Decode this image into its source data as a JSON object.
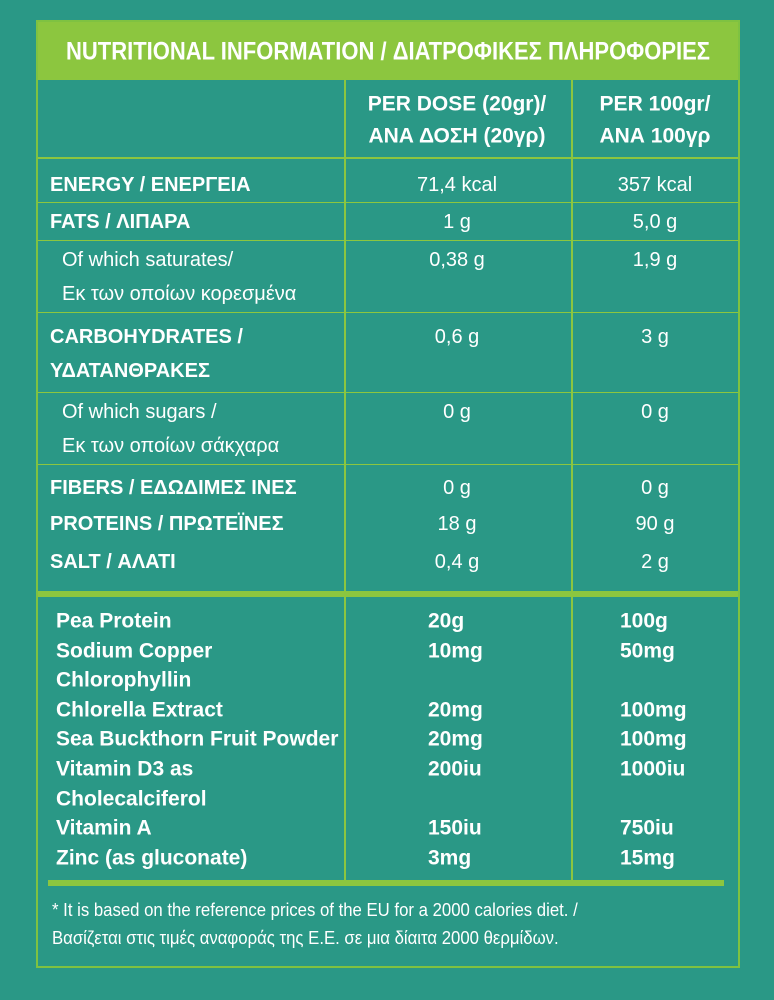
{
  "header": {
    "title": "NUTRITIONAL INFORMATION / ΔΙΑΤΡΟΦΙΚΕΣ ΠΛΗΡΟΦΟΡΙΕΣ"
  },
  "table": {
    "columns": [
      [
        "PER DOSE (20gr)/",
        "ΑΝΑ ΔΟΣΗ (20γρ)"
      ],
      [
        "PER 100gr/",
        "ΑΝΑ 100γρ"
      ]
    ],
    "nutrients": [
      {
        "label": [
          "ENERGY / ΕΝΕΡΓΕΙΑ"
        ],
        "dose": "71,4 kcal",
        "per100": "357 kcal"
      },
      {
        "label": [
          "FATS / ΛΙΠΑΡΑ"
        ],
        "dose": "1 g",
        "per100": "5,0 g"
      },
      {
        "label": [
          "Of which saturates/",
          "Εκ των οποίων κορεσμένα"
        ],
        "dose": "0,38 g",
        "per100": "1,9 g"
      },
      {
        "label": [
          "CARBOHYDRATES /",
          "ΥΔΑΤΑΝΘΡΑΚΕΣ"
        ],
        "dose": "0,6 g",
        "per100": "3 g"
      },
      {
        "label": [
          "Of which sugars /",
          "Εκ των οποίων σάκχαρα"
        ],
        "dose": "0 g",
        "per100": "0 g"
      },
      {
        "label": [
          "FIBERS / ΕΔΩΔΙΜΕΣ ΙΝΕΣ"
        ],
        "dose": "0 g",
        "per100": "0 g"
      },
      {
        "label": [
          "PROTEINS / ΠΡΩΤΕΪΝΕΣ"
        ],
        "dose": "18 g",
        "per100": "90 g"
      },
      {
        "label": [
          "SALT / ΑΛΑΤΙ"
        ],
        "dose": "0,4 g",
        "per100": "2 g"
      }
    ],
    "ingredients": [
      {
        "label": [
          "Pea Protein"
        ],
        "dose": "20g",
        "per100": "100g"
      },
      {
        "label": [
          "Sodium Copper",
          "Chlorophyllin"
        ],
        "dose": "10mg",
        "per100": "50mg"
      },
      {
        "label": [
          "Chlorella Extract"
        ],
        "dose": "20mg",
        "per100": "100mg"
      },
      {
        "label": [
          "Sea Buckthorn Fruit Powder"
        ],
        "dose": "20mg",
        "per100": "100mg"
      },
      {
        "label": [
          "Vitamin D3 as",
          "Cholecalciferol"
        ],
        "dose": "200iu",
        "per100": "1000iu"
      },
      {
        "label": [
          "Vitamin A"
        ],
        "dose": "150iu",
        "per100": "750iu"
      },
      {
        "label": [
          "Zinc (as gluconate)"
        ],
        "dose": "3mg",
        "per100": "15mg"
      }
    ]
  },
  "footnote": [
    "* It is based on the reference prices of the EU for a 2000 calories diet. /",
    "Βασίζεται στις τιμές αναφοράς της Ε.Ε. σε μια δίαιτα 2000 θερμίδων."
  ]
}
